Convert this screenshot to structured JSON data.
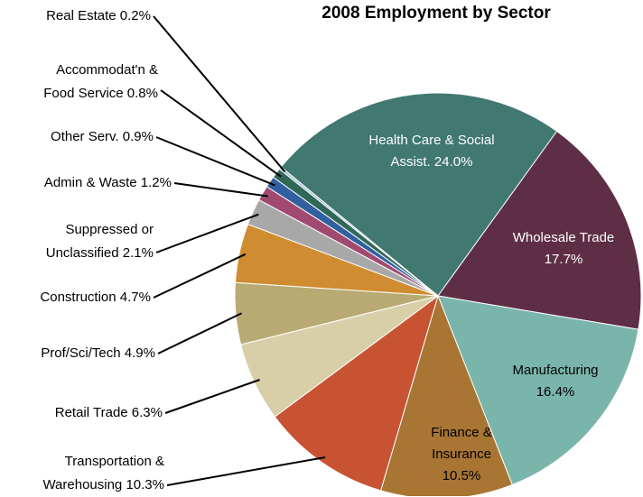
{
  "chart_data": {
    "type": "pie",
    "title": "2008 Employment by Sector",
    "categories": [
      "Health Care & Social Assist.",
      "Wholesale Trade",
      "Manufacturing",
      "Finance & Insurance",
      "Transportation & Warehousing",
      "Retail Trade",
      "Prof/Sci/Tech",
      "Construction",
      "Suppressed or Unclassified",
      "Admin & Waste",
      "Other Serv.",
      "Accommodat'n & Food Service",
      "Real Estate"
    ],
    "values": [
      24.0,
      17.7,
      16.4,
      10.5,
      10.3,
      6.3,
      4.9,
      4.7,
      2.1,
      1.2,
      0.9,
      0.8,
      0.2
    ],
    "value_labels": [
      "24.0%",
      "17.7%",
      "16.4%",
      "10.5%",
      "10.3%",
      "6.3%",
      "4.9%",
      "4.7%",
      "2.1%",
      "1.2%",
      "0.9%",
      "0.8%",
      "0.2%"
    ],
    "colors": [
      "#417870",
      "#5e2e45",
      "#7ab5ac",
      "#a87533",
      "#c85333",
      "#d8cfa8",
      "#b8aa72",
      "#d08c30",
      "#a8a8a8",
      "#a04a70",
      "#3060a0",
      "#306858",
      "#a0c0d8"
    ]
  }
}
